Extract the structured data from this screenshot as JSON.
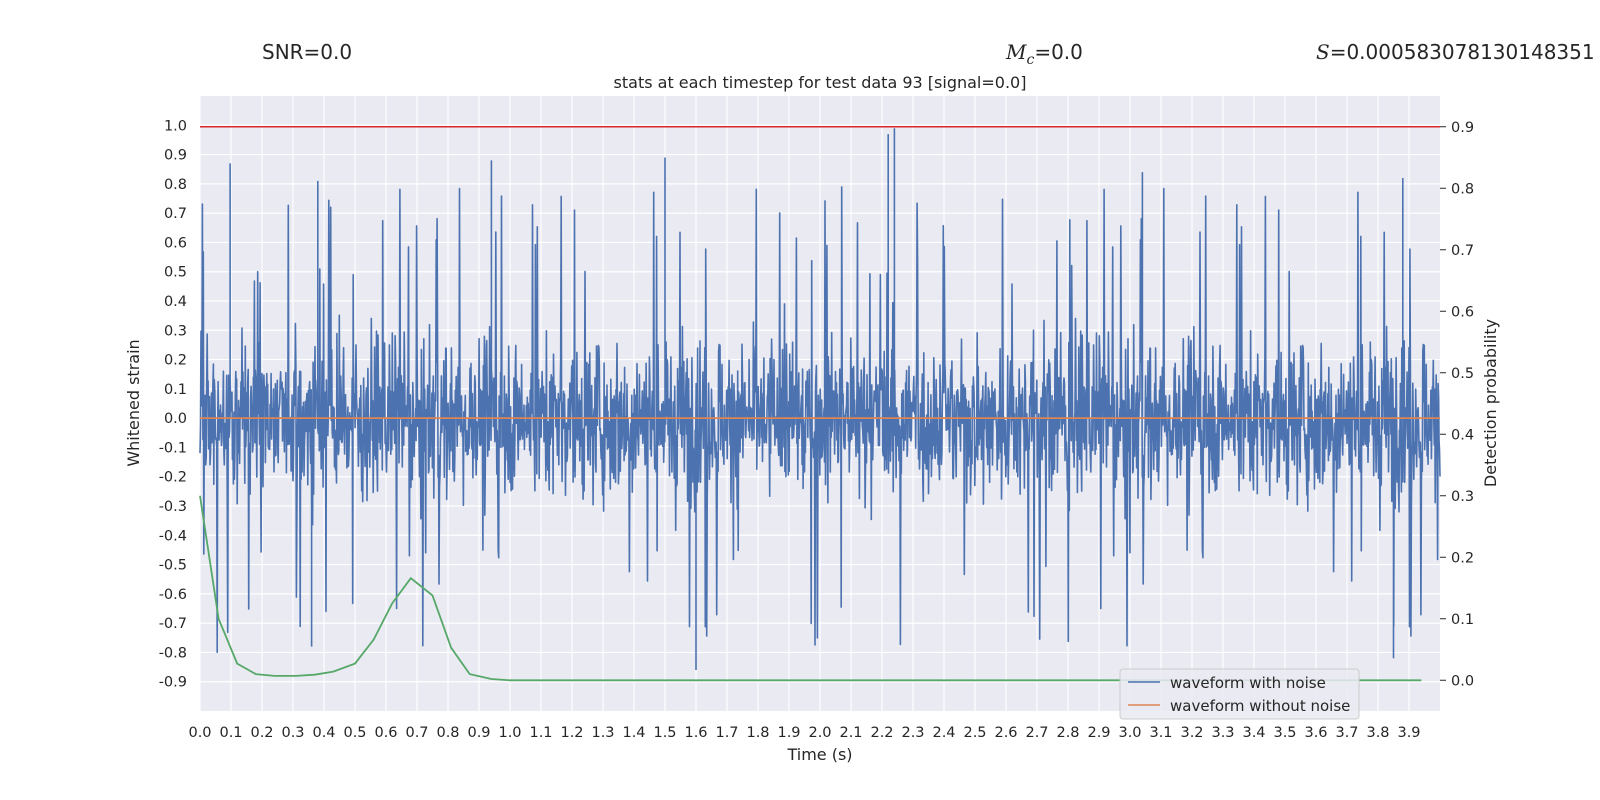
{
  "header": {
    "snr_label": "SNR=0.0",
    "mc_symbol": "M",
    "mc_sub": "c",
    "mc_value": "=0.0",
    "s_symbol": "S",
    "s_value": "=0.000583078130148351"
  },
  "chart_data": {
    "type": "line",
    "title": "stats at each timestep for test data 93 [signal=0.0]",
    "xlabel": "Time (s)",
    "ylabel_left": "Whitened strain",
    "ylabel_right": "Detection probability",
    "xlim": [
      0.0,
      4.0
    ],
    "ylim_left": [
      -1.0,
      1.1
    ],
    "ylim_right": [
      -0.05,
      0.95
    ],
    "x_ticks": [
      "0.0",
      "0.1",
      "0.2",
      "0.3",
      "0.4",
      "0.5",
      "0.6",
      "0.7",
      "0.8",
      "0.9",
      "1.0",
      "1.1",
      "1.2",
      "1.3",
      "1.4",
      "1.5",
      "1.6",
      "1.7",
      "1.8",
      "1.9",
      "2.0",
      "2.1",
      "2.2",
      "2.3",
      "2.4",
      "2.5",
      "2.6",
      "2.7",
      "2.8",
      "2.9",
      "3.0",
      "3.1",
      "3.2",
      "3.3",
      "3.4",
      "3.5",
      "3.6",
      "3.7",
      "3.8",
      "3.9"
    ],
    "y_ticks_left": [
      "1.0",
      "0.9",
      "0.8",
      "0.7",
      "0.6",
      "0.5",
      "0.4",
      "0.3",
      "0.2",
      "0.1",
      "0.0",
      "-0.1",
      "-0.2",
      "-0.3",
      "-0.4",
      "-0.5",
      "-0.6",
      "-0.7",
      "-0.8",
      "-0.9"
    ],
    "y_ticks_right": [
      "0.9",
      "0.8",
      "0.7",
      "0.6",
      "0.5",
      "0.4",
      "0.3",
      "0.2",
      "0.1",
      "0.0"
    ],
    "threshold_line": {
      "axis": "right",
      "value": 0.9,
      "color": "#d62728"
    },
    "series": [
      {
        "name": "waveform with noise",
        "axis": "left",
        "color": "#4c72b0",
        "style": "noise",
        "approx_range": [
          -0.86,
          0.99
        ],
        "peaks": [
          {
            "x": 0.097,
            "y": 0.87
          },
          {
            "x": 0.38,
            "y": 0.81
          },
          {
            "x": 0.94,
            "y": 0.88
          },
          {
            "x": 1.5,
            "y": 0.89
          },
          {
            "x": 2.22,
            "y": 0.97
          },
          {
            "x": 2.24,
            "y": 0.99
          },
          {
            "x": 3.04,
            "y": 0.84
          },
          {
            "x": 3.88,
            "y": 0.82
          },
          {
            "x": 0.36,
            "y": -0.78
          },
          {
            "x": 1.6,
            "y": -0.86
          },
          {
            "x": 3.85,
            "y": -0.82
          }
        ]
      },
      {
        "name": "waveform without noise",
        "axis": "left",
        "color": "#dd8452",
        "x": [
          0.0,
          4.0
        ],
        "y": [
          0.0,
          0.0
        ]
      },
      {
        "name": "detection probability",
        "axis": "right",
        "color": "#55a868",
        "x": [
          0.0,
          0.06,
          0.12,
          0.18,
          0.24,
          0.31,
          0.37,
          0.43,
          0.5,
          0.56,
          0.62,
          0.68,
          0.75,
          0.81,
          0.87,
          0.94,
          1.0,
          1.5,
          2.0,
          2.5,
          3.0,
          3.5,
          3.94
        ],
        "y": [
          0.3,
          0.1,
          0.027,
          0.01,
          0.007,
          0.007,
          0.009,
          0.014,
          0.027,
          0.066,
          0.125,
          0.166,
          0.138,
          0.053,
          0.01,
          0.002,
          0.0,
          0.0,
          0.0,
          0.0,
          0.0,
          0.0,
          0.0
        ]
      }
    ],
    "legend": {
      "position": "lower-right",
      "entries": [
        {
          "label": "waveform with noise",
          "color": "#4c72b0"
        },
        {
          "label": "waveform without noise",
          "color": "#dd8452"
        }
      ]
    }
  }
}
